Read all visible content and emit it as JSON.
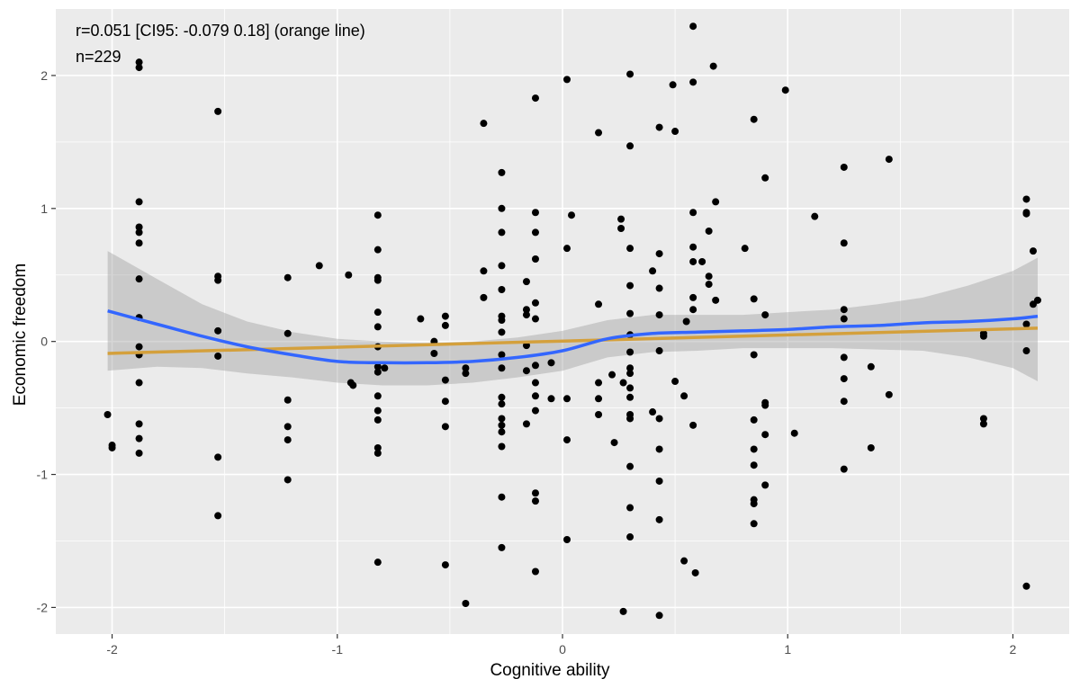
{
  "chart_data": {
    "type": "scatter",
    "title": "",
    "xlabel": "Cognitive ability",
    "ylabel": "Economic freedom",
    "xlim": [
      -2.25,
      2.25
    ],
    "ylim": [
      -2.2,
      2.5
    ],
    "x_ticks": [
      -2,
      -1,
      0,
      1,
      2
    ],
    "y_ticks": [
      -2,
      -1,
      0,
      1,
      2
    ],
    "grid": true,
    "annotations": [
      "r=0.051 [CI95: -0.079 0.18] (orange line)",
      "n=229"
    ],
    "colors": {
      "panel": "#ebebeb",
      "grid": "#ffffff",
      "points": "#000000",
      "loess": "#3366ff",
      "linear": "#d4a03c",
      "ribbon": "#999999"
    },
    "points": [
      [
        -2.02,
        -0.55
      ],
      [
        -2.0,
        -0.78
      ],
      [
        -2.0,
        -0.8
      ],
      [
        -1.88,
        2.1
      ],
      [
        -1.88,
        2.06
      ],
      [
        -1.88,
        1.05
      ],
      [
        -1.88,
        0.86
      ],
      [
        -1.88,
        0.82
      ],
      [
        -1.88,
        0.74
      ],
      [
        -1.88,
        0.47
      ],
      [
        -1.88,
        0.18
      ],
      [
        -1.88,
        -0.04
      ],
      [
        -1.88,
        -0.1
      ],
      [
        -1.88,
        -0.31
      ],
      [
        -1.88,
        -0.62
      ],
      [
        -1.88,
        -0.73
      ],
      [
        -1.88,
        -0.84
      ],
      [
        -1.53,
        1.73
      ],
      [
        -1.53,
        0.49
      ],
      [
        -1.53,
        0.46
      ],
      [
        -1.53,
        0.08
      ],
      [
        -1.53,
        -0.11
      ],
      [
        -1.53,
        -0.87
      ],
      [
        -1.53,
        -1.31
      ],
      [
        -1.22,
        0.48
      ],
      [
        -1.22,
        0.06
      ],
      [
        -1.22,
        -0.44
      ],
      [
        -1.22,
        -0.64
      ],
      [
        -1.22,
        -0.74
      ],
      [
        -1.22,
        -1.04
      ],
      [
        -1.08,
        0.57
      ],
      [
        -0.95,
        0.5
      ],
      [
        -0.94,
        -0.31
      ],
      [
        -0.93,
        -0.33
      ],
      [
        -0.82,
        0.95
      ],
      [
        -0.82,
        0.69
      ],
      [
        -0.82,
        0.48
      ],
      [
        -0.82,
        0.46
      ],
      [
        -0.82,
        0.22
      ],
      [
        -0.82,
        0.11
      ],
      [
        -0.82,
        -0.04
      ],
      [
        -0.82,
        -0.19
      ],
      [
        -0.82,
        -0.23
      ],
      [
        -0.82,
        -0.41
      ],
      [
        -0.82,
        -0.52
      ],
      [
        -0.82,
        -0.59
      ],
      [
        -0.82,
        -0.8
      ],
      [
        -0.82,
        -0.84
      ],
      [
        -0.82,
        -1.66
      ],
      [
        -0.79,
        -0.2
      ],
      [
        -0.63,
        0.17
      ],
      [
        -0.57,
        0.0
      ],
      [
        -0.57,
        -0.09
      ],
      [
        -0.52,
        0.19
      ],
      [
        -0.52,
        0.12
      ],
      [
        -0.52,
        -0.29
      ],
      [
        -0.52,
        -0.45
      ],
      [
        -0.52,
        -0.64
      ],
      [
        -0.52,
        -1.68
      ],
      [
        -0.43,
        -0.2
      ],
      [
        -0.43,
        -0.24
      ],
      [
        -0.43,
        -1.97
      ],
      [
        -0.35,
        1.64
      ],
      [
        -0.35,
        0.53
      ],
      [
        -0.35,
        0.33
      ],
      [
        -0.27,
        1.27
      ],
      [
        -0.27,
        1.0
      ],
      [
        -0.27,
        0.82
      ],
      [
        -0.27,
        0.57
      ],
      [
        -0.27,
        0.39
      ],
      [
        -0.27,
        0.19
      ],
      [
        -0.27,
        0.16
      ],
      [
        -0.27,
        0.07
      ],
      [
        -0.27,
        -0.1
      ],
      [
        -0.27,
        -0.2
      ],
      [
        -0.27,
        -0.42
      ],
      [
        -0.27,
        -0.47
      ],
      [
        -0.27,
        -0.58
      ],
      [
        -0.27,
        -0.63
      ],
      [
        -0.27,
        -0.68
      ],
      [
        -0.27,
        -0.79
      ],
      [
        -0.27,
        -1.17
      ],
      [
        -0.27,
        -1.55
      ],
      [
        -0.16,
        0.45
      ],
      [
        -0.16,
        0.24
      ],
      [
        -0.16,
        0.2
      ],
      [
        -0.16,
        -0.03
      ],
      [
        -0.16,
        -0.22
      ],
      [
        -0.16,
        -0.62
      ],
      [
        -0.12,
        1.83
      ],
      [
        -0.12,
        0.97
      ],
      [
        -0.12,
        0.82
      ],
      [
        -0.12,
        0.62
      ],
      [
        -0.12,
        0.29
      ],
      [
        -0.12,
        0.17
      ],
      [
        -0.12,
        -0.18
      ],
      [
        -0.12,
        -0.31
      ],
      [
        -0.12,
        -0.41
      ],
      [
        -0.12,
        -0.52
      ],
      [
        -0.12,
        -1.14
      ],
      [
        -0.12,
        -1.2
      ],
      [
        -0.12,
        -1.73
      ],
      [
        -0.05,
        -0.16
      ],
      [
        -0.05,
        -0.43
      ],
      [
        0.02,
        1.97
      ],
      [
        0.02,
        0.7
      ],
      [
        0.02,
        -0.43
      ],
      [
        0.02,
        -0.74
      ],
      [
        0.02,
        -1.49
      ],
      [
        0.04,
        0.95
      ],
      [
        0.16,
        1.57
      ],
      [
        0.16,
        0.28
      ],
      [
        0.16,
        -0.31
      ],
      [
        0.16,
        -0.43
      ],
      [
        0.16,
        -0.55
      ],
      [
        0.22,
        -0.25
      ],
      [
        0.23,
        -0.76
      ],
      [
        0.26,
        0.92
      ],
      [
        0.26,
        0.85
      ],
      [
        0.27,
        -0.31
      ],
      [
        0.27,
        -2.03
      ],
      [
        0.3,
        2.01
      ],
      [
        0.3,
        1.47
      ],
      [
        0.3,
        0.7
      ],
      [
        0.3,
        0.42
      ],
      [
        0.3,
        0.21
      ],
      [
        0.3,
        0.05
      ],
      [
        0.3,
        -0.08
      ],
      [
        0.3,
        -0.2
      ],
      [
        0.3,
        -0.24
      ],
      [
        0.3,
        -0.35
      ],
      [
        0.3,
        -0.42
      ],
      [
        0.3,
        -0.55
      ],
      [
        0.3,
        -0.58
      ],
      [
        0.3,
        -0.94
      ],
      [
        0.3,
        -1.25
      ],
      [
        0.3,
        -1.47
      ],
      [
        0.4,
        0.53
      ],
      [
        0.4,
        -0.53
      ],
      [
        0.43,
        1.61
      ],
      [
        0.43,
        0.66
      ],
      [
        0.43,
        0.4
      ],
      [
        0.43,
        0.2
      ],
      [
        0.43,
        -0.07
      ],
      [
        0.43,
        -0.58
      ],
      [
        0.43,
        -0.81
      ],
      [
        0.43,
        -1.05
      ],
      [
        0.43,
        -1.34
      ],
      [
        0.43,
        -2.06
      ],
      [
        0.49,
        1.93
      ],
      [
        0.5,
        1.58
      ],
      [
        0.5,
        -0.3
      ],
      [
        0.54,
        -0.41
      ],
      [
        0.54,
        -1.65
      ],
      [
        0.55,
        0.15
      ],
      [
        0.58,
        2.37
      ],
      [
        0.58,
        1.95
      ],
      [
        0.58,
        0.97
      ],
      [
        0.58,
        0.71
      ],
      [
        0.58,
        0.6
      ],
      [
        0.58,
        0.33
      ],
      [
        0.58,
        0.24
      ],
      [
        0.58,
        -0.63
      ],
      [
        0.59,
        -1.74
      ],
      [
        0.62,
        0.6
      ],
      [
        0.65,
        0.83
      ],
      [
        0.65,
        0.49
      ],
      [
        0.65,
        0.43
      ],
      [
        0.67,
        2.07
      ],
      [
        0.68,
        1.05
      ],
      [
        0.68,
        0.31
      ],
      [
        0.81,
        0.7
      ],
      [
        0.85,
        1.67
      ],
      [
        0.85,
        0.32
      ],
      [
        0.85,
        -0.1
      ],
      [
        0.85,
        -0.59
      ],
      [
        0.85,
        -0.81
      ],
      [
        0.85,
        -0.93
      ],
      [
        0.85,
        -1.19
      ],
      [
        0.85,
        -1.22
      ],
      [
        0.85,
        -1.37
      ],
      [
        0.9,
        1.23
      ],
      [
        0.9,
        0.2
      ],
      [
        0.9,
        -0.46
      ],
      [
        0.9,
        -0.48
      ],
      [
        0.9,
        -0.7
      ],
      [
        0.9,
        -1.08
      ],
      [
        0.99,
        1.89
      ],
      [
        1.03,
        -0.69
      ],
      [
        1.12,
        0.94
      ],
      [
        1.25,
        1.31
      ],
      [
        1.25,
        0.74
      ],
      [
        1.25,
        0.24
      ],
      [
        1.25,
        0.17
      ],
      [
        1.25,
        -0.12
      ],
      [
        1.25,
        -0.28
      ],
      [
        1.25,
        -0.45
      ],
      [
        1.25,
        -0.96
      ],
      [
        1.37,
        -0.19
      ],
      [
        1.37,
        -0.8
      ],
      [
        1.45,
        1.37
      ],
      [
        1.45,
        -0.4
      ],
      [
        1.87,
        0.06
      ],
      [
        1.87,
        -0.58
      ],
      [
        1.87,
        -0.62
      ],
      [
        1.87,
        0.04
      ],
      [
        2.06,
        1.07
      ],
      [
        2.06,
        0.97
      ],
      [
        2.06,
        0.96
      ],
      [
        2.06,
        0.13
      ],
      [
        2.06,
        -0.07
      ],
      [
        2.06,
        -1.84
      ],
      [
        2.09,
        0.68
      ],
      [
        2.09,
        0.28
      ],
      [
        2.11,
        0.31
      ]
    ],
    "loess": [
      [
        -2.02,
        0.23
      ],
      [
        -1.8,
        0.13
      ],
      [
        -1.6,
        0.04
      ],
      [
        -1.4,
        -0.04
      ],
      [
        -1.2,
        -0.1
      ],
      [
        -1.0,
        -0.15
      ],
      [
        -0.8,
        -0.16
      ],
      [
        -0.6,
        -0.16
      ],
      [
        -0.4,
        -0.15
      ],
      [
        -0.2,
        -0.12
      ],
      [
        0.0,
        -0.07
      ],
      [
        0.2,
        0.02
      ],
      [
        0.4,
        0.06
      ],
      [
        0.6,
        0.07
      ],
      [
        0.8,
        0.08
      ],
      [
        1.0,
        0.09
      ],
      [
        1.2,
        0.11
      ],
      [
        1.4,
        0.12
      ],
      [
        1.6,
        0.14
      ],
      [
        1.8,
        0.15
      ],
      [
        2.0,
        0.17
      ],
      [
        2.11,
        0.19
      ]
    ],
    "ribbon_upper": [
      [
        -2.02,
        0.68
      ],
      [
        -1.8,
        0.47
      ],
      [
        -1.6,
        0.28
      ],
      [
        -1.4,
        0.15
      ],
      [
        -1.2,
        0.07
      ],
      [
        -1.0,
        0.02
      ],
      [
        -0.8,
        0.0
      ],
      [
        -0.6,
        -0.01
      ],
      [
        -0.4,
        0.0
      ],
      [
        -0.2,
        0.03
      ],
      [
        0.0,
        0.08
      ],
      [
        0.2,
        0.16
      ],
      [
        0.4,
        0.2
      ],
      [
        0.6,
        0.2
      ],
      [
        0.8,
        0.2
      ],
      [
        1.0,
        0.22
      ],
      [
        1.2,
        0.24
      ],
      [
        1.4,
        0.28
      ],
      [
        1.6,
        0.33
      ],
      [
        1.8,
        0.42
      ],
      [
        2.0,
        0.53
      ],
      [
        2.11,
        0.63
      ]
    ],
    "ribbon_lower": [
      [
        -2.02,
        -0.22
      ],
      [
        -1.8,
        -0.19
      ],
      [
        -1.6,
        -0.2
      ],
      [
        -1.4,
        -0.24
      ],
      [
        -1.2,
        -0.27
      ],
      [
        -1.0,
        -0.31
      ],
      [
        -0.8,
        -0.33
      ],
      [
        -0.6,
        -0.33
      ],
      [
        -0.4,
        -0.31
      ],
      [
        -0.2,
        -0.27
      ],
      [
        0.0,
        -0.22
      ],
      [
        0.2,
        -0.12
      ],
      [
        0.4,
        -0.08
      ],
      [
        0.6,
        -0.07
      ],
      [
        0.8,
        -0.05
      ],
      [
        1.0,
        -0.05
      ],
      [
        1.2,
        -0.05
      ],
      [
        1.4,
        -0.06
      ],
      [
        1.6,
        -0.07
      ],
      [
        1.8,
        -0.12
      ],
      [
        2.0,
        -0.2
      ],
      [
        2.11,
        -0.3
      ]
    ],
    "linear": [
      [
        -2.02,
        -0.09
      ],
      [
        2.11,
        0.1
      ]
    ]
  }
}
